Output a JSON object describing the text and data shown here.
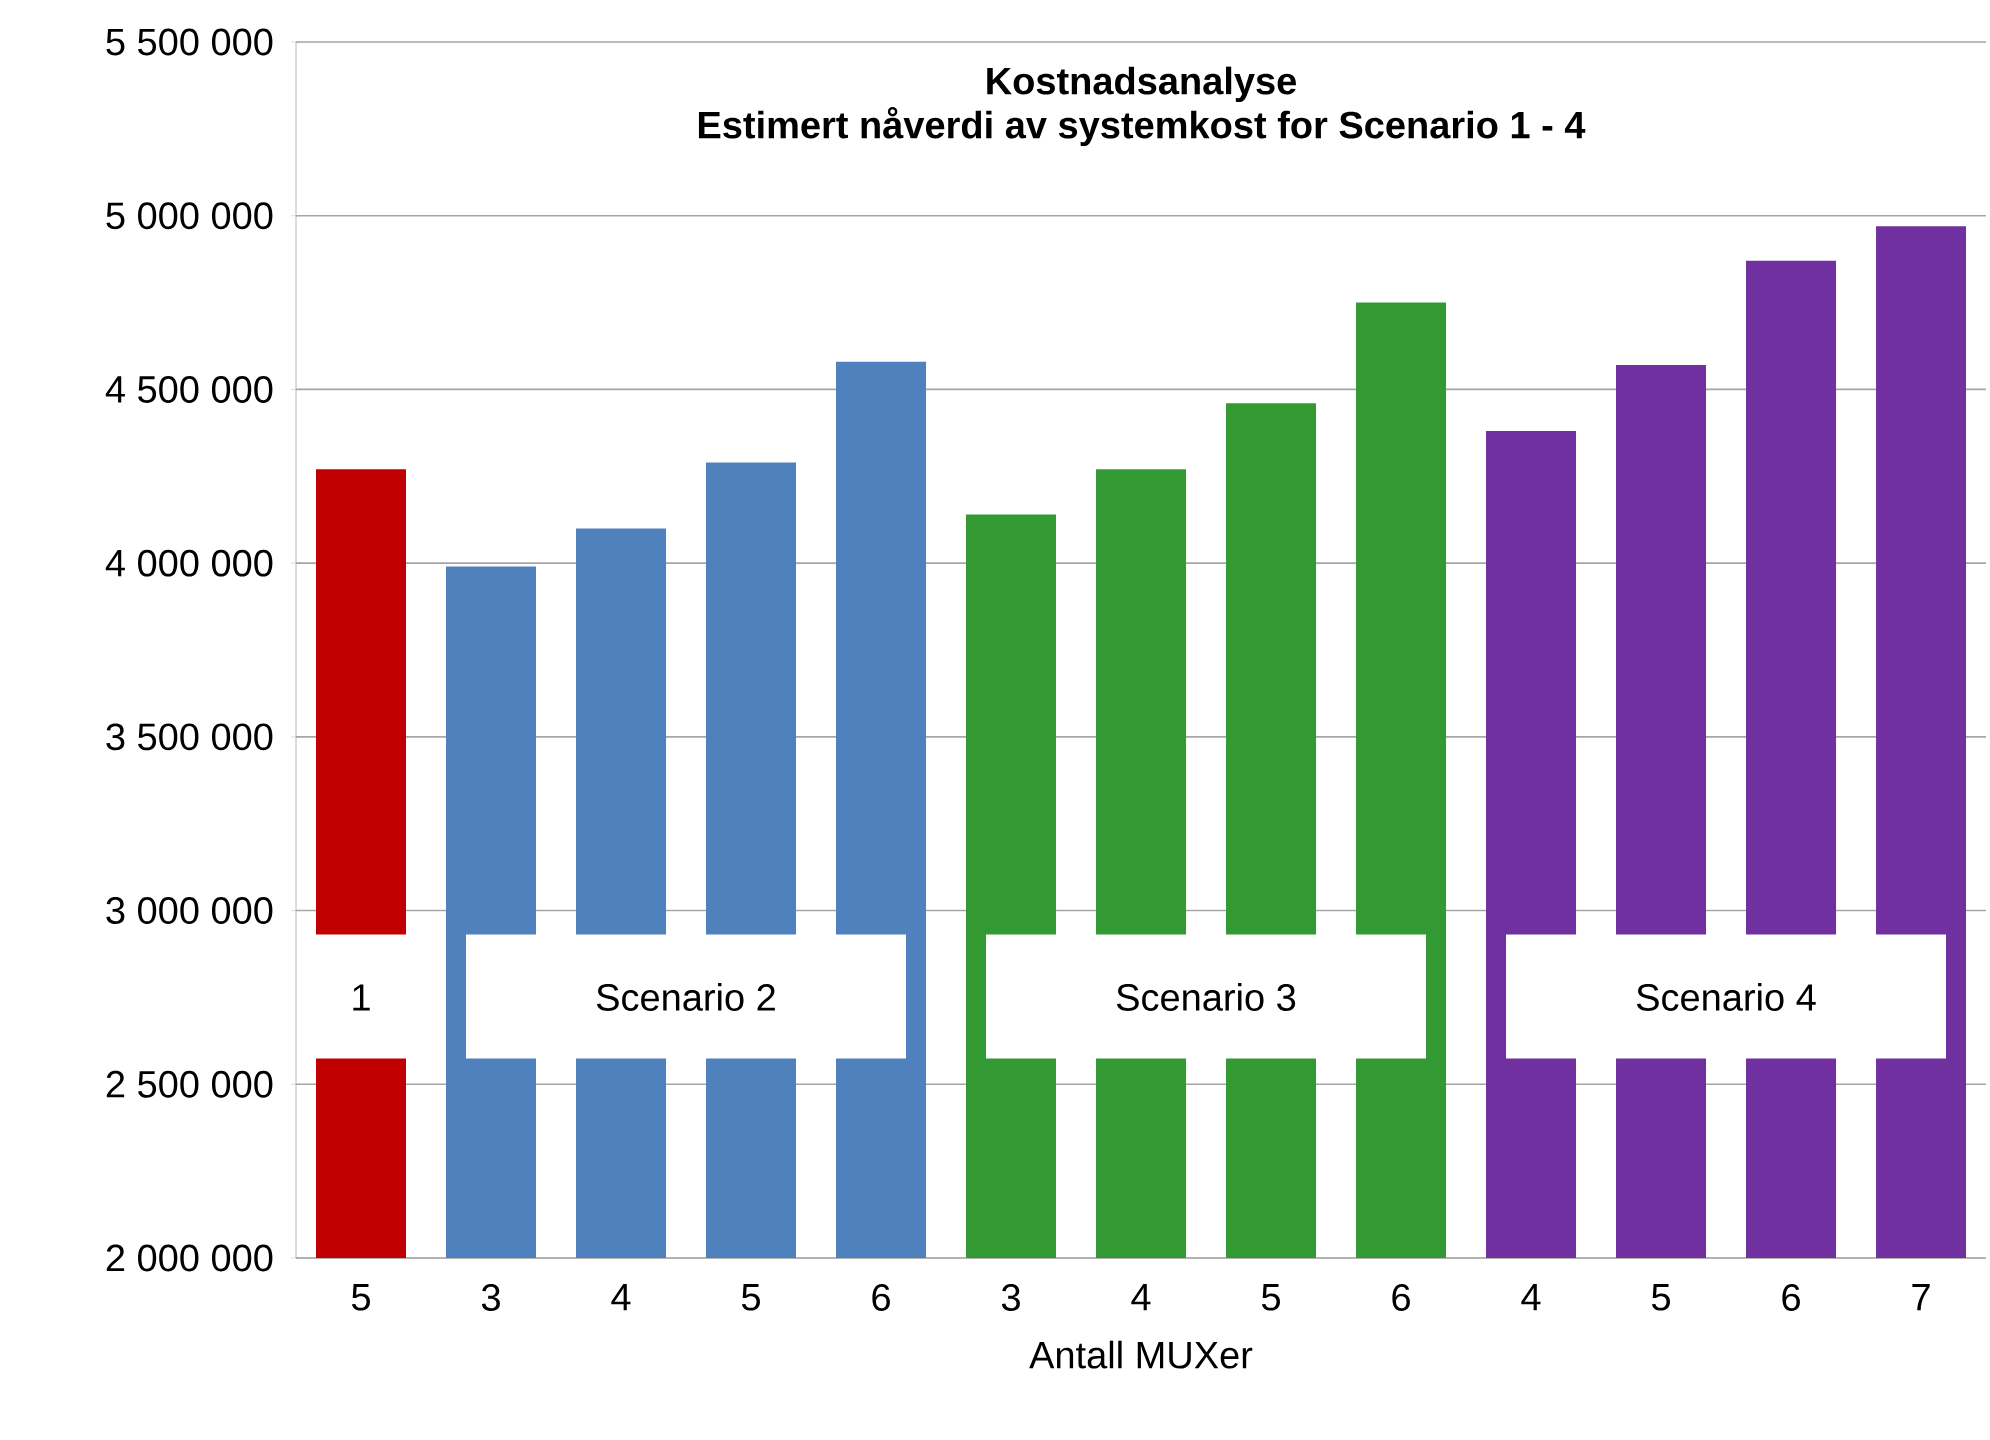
{
  "chart_data": {
    "type": "bar",
    "title": "Kostnadsanalyse",
    "subtitle": "Estimert nåverdi av systemkost for Scenario 1 - 4",
    "xlabel": "Antall MUXer",
    "categories": [
      "5",
      "3",
      "4",
      "5",
      "6",
      "3",
      "4",
      "5",
      "6",
      "4",
      "5",
      "6",
      "7"
    ],
    "values": [
      4270000,
      3990000,
      4100000,
      4290000,
      4580000,
      4140000,
      4270000,
      4460000,
      4750000,
      4380000,
      4570000,
      4870000,
      4970000
    ],
    "colors": [
      "#c00000",
      "#4f81bd",
      "#4f81bd",
      "#4f81bd",
      "#4f81bd",
      "#339933",
      "#339933",
      "#339933",
      "#339933",
      "#7030a0",
      "#7030a0",
      "#7030a0",
      "#7030a0"
    ],
    "ylim": [
      2000000,
      5500000
    ],
    "yticks": [
      {
        "value": 2000000,
        "label": "2 000 000"
      },
      {
        "value": 2500000,
        "label": "2 500 000"
      },
      {
        "value": 3000000,
        "label": "3 000 000"
      },
      {
        "value": 3500000,
        "label": "3 500 000"
      },
      {
        "value": 4000000,
        "label": "4 000 000"
      },
      {
        "value": 4500000,
        "label": "4 500 000"
      },
      {
        "value": 5000000,
        "label": "5 000 000"
      },
      {
        "value": 5500000,
        "label": "5 500 000"
      }
    ],
    "grid": "y",
    "annotations": [
      "1",
      "Scenario 2",
      "Scenario 3",
      "Scenario 4"
    ]
  }
}
